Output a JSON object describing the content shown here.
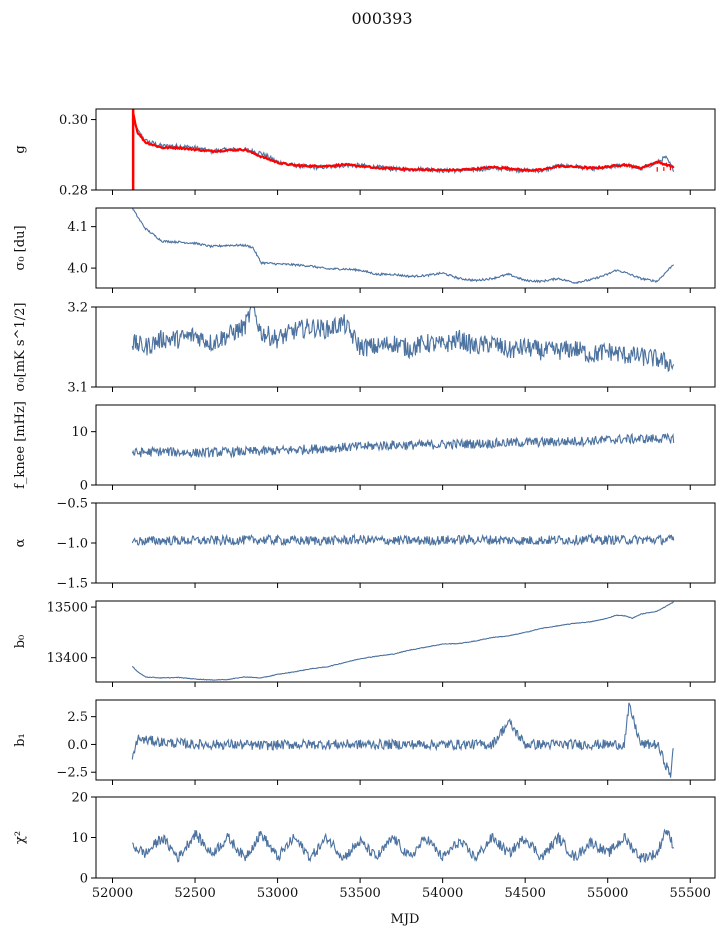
{
  "figure": {
    "title": "000393",
    "xlabel": "MJD",
    "series_color": "#4c72a0",
    "overlay_color": "#ff0000"
  },
  "chart_data": [
    {
      "type": "line",
      "name": "g",
      "ylabel": "g",
      "xlim": [
        51900,
        55650
      ],
      "ylim": [
        0.28,
        0.303
      ],
      "yticks": [
        0.28,
        0.3
      ],
      "ytick_labels": [
        "0.28",
        "0.30"
      ],
      "x": [
        52120,
        52150,
        52200,
        52300,
        52400,
        52500,
        52600,
        52700,
        52800,
        52900,
        53000,
        53100,
        53200,
        53300,
        53400,
        53500,
        53600,
        53700,
        53800,
        53900,
        54000,
        54100,
        54200,
        54300,
        54400,
        54500,
        54600,
        54700,
        54800,
        54900,
        55000,
        55100,
        55200,
        55300,
        55350,
        55400
      ],
      "y": [
        0.3,
        0.297,
        0.294,
        0.2925,
        0.2925,
        0.292,
        0.291,
        0.2915,
        0.2915,
        0.2905,
        0.288,
        0.287,
        0.2865,
        0.2865,
        0.287,
        0.287,
        0.2865,
        0.286,
        0.2858,
        0.286,
        0.2855,
        0.2855,
        0.2858,
        0.2862,
        0.286,
        0.2855,
        0.2855,
        0.2868,
        0.2868,
        0.286,
        0.2863,
        0.2873,
        0.286,
        0.2878,
        0.2893,
        0.2858
      ],
      "overlay": {
        "name": "fit",
        "x": [
          52125,
          52150,
          52200,
          52300,
          52400,
          52500,
          52600,
          52700,
          52800,
          52900,
          53000,
          53100,
          53200,
          53300,
          53400,
          53500,
          53600,
          53700,
          53800,
          53900,
          54000,
          54100,
          54200,
          54300,
          54400,
          54500,
          54600,
          54700,
          54800,
          54900,
          55000,
          55100,
          55200,
          55300,
          55400
        ],
        "y": [
          0.302,
          0.2965,
          0.2935,
          0.292,
          0.292,
          0.2915,
          0.291,
          0.2913,
          0.2915,
          0.2895,
          0.2878,
          0.287,
          0.2868,
          0.2868,
          0.2872,
          0.2868,
          0.2862,
          0.2862,
          0.2858,
          0.2858,
          0.2856,
          0.2857,
          0.286,
          0.2865,
          0.2862,
          0.2856,
          0.2857,
          0.2868,
          0.2866,
          0.2862,
          0.2866,
          0.2872,
          0.2862,
          0.288,
          0.2865
        ]
      }
    },
    {
      "type": "line",
      "name": "sigma0_du",
      "ylabel": "σ₀ [du]",
      "xlim": [
        51900,
        55650
      ],
      "ylim": [
        3.952,
        4.145
      ],
      "yticks": [
        4.0,
        4.1
      ],
      "ytick_labels": [
        "4.0",
        "4.1"
      ],
      "x": [
        52120,
        52150,
        52200,
        52300,
        52400,
        52500,
        52600,
        52700,
        52800,
        52850,
        52900,
        53000,
        53100,
        53200,
        53300,
        53400,
        53500,
        53600,
        53700,
        53800,
        53900,
        54000,
        54100,
        54200,
        54300,
        54400,
        54500,
        54600,
        54700,
        54800,
        54900,
        55000,
        55050,
        55100,
        55200,
        55300,
        55400
      ],
      "y": [
        4.145,
        4.125,
        4.095,
        4.065,
        4.063,
        4.06,
        4.052,
        4.055,
        4.055,
        4.05,
        4.013,
        4.01,
        4.008,
        4.005,
        3.998,
        3.998,
        3.995,
        3.985,
        3.985,
        3.98,
        3.982,
        3.988,
        3.975,
        3.97,
        3.975,
        3.985,
        3.97,
        3.968,
        3.975,
        3.965,
        3.972,
        3.985,
        3.995,
        3.99,
        3.975,
        3.968,
        4.01
      ]
    },
    {
      "type": "line",
      "name": "sigma0_mK",
      "ylabel": "σ₀[mK s^1/2]",
      "xlim": [
        51900,
        55650
      ],
      "ylim": [
        3.1,
        3.2
      ],
      "yticks": [
        3.1,
        3.2
      ],
      "ytick_labels": [
        "3.1",
        "3.2"
      ],
      "x": [
        52120,
        52200,
        52300,
        52400,
        52500,
        52600,
        52700,
        52800,
        52850,
        52900,
        53000,
        53100,
        53200,
        53300,
        53400,
        53500,
        53600,
        53700,
        53800,
        53900,
        54000,
        54100,
        54200,
        54300,
        54400,
        54500,
        54600,
        54700,
        54800,
        54900,
        55000,
        55100,
        55200,
        55300,
        55400
      ],
      "y": [
        3.155,
        3.15,
        3.16,
        3.16,
        3.165,
        3.155,
        3.165,
        3.175,
        3.2,
        3.168,
        3.16,
        3.17,
        3.175,
        3.172,
        3.18,
        3.15,
        3.15,
        3.155,
        3.148,
        3.155,
        3.152,
        3.16,
        3.15,
        3.155,
        3.145,
        3.15,
        3.145,
        3.145,
        3.148,
        3.14,
        3.145,
        3.14,
        3.138,
        3.135,
        3.128
      ]
    },
    {
      "type": "line",
      "name": "fknee",
      "ylabel": "f_knee [mHz]",
      "xlim": [
        51900,
        55650
      ],
      "ylim": [
        0,
        15
      ],
      "yticks": [
        0,
        10
      ],
      "ytick_labels": [
        "0",
        "10"
      ],
      "x": [
        52120,
        52300,
        52500,
        52700,
        52900,
        53100,
        53300,
        53500,
        53700,
        53900,
        54100,
        54300,
        54500,
        54700,
        54900,
        55100,
        55300,
        55400
      ],
      "y": [
        6.0,
        6.3,
        6.0,
        6.2,
        6.3,
        6.6,
        6.9,
        7.2,
        7.5,
        7.5,
        7.7,
        7.8,
        8.0,
        8.1,
        8.3,
        8.6,
        8.7,
        8.7
      ]
    },
    {
      "type": "line",
      "name": "alpha",
      "ylabel": "α",
      "xlim": [
        51900,
        55650
      ],
      "ylim": [
        -1.5,
        -0.5
      ],
      "yticks": [
        -1.5,
        -1.0,
        -0.5
      ],
      "ytick_labels": [
        "−1.5",
        "−1.0",
        "−0.5"
      ],
      "x": [
        52120,
        52300,
        52500,
        52700,
        52900,
        53100,
        53300,
        53500,
        53700,
        53900,
        54100,
        54300,
        54500,
        54700,
        54900,
        55100,
        55300,
        55400
      ],
      "y": [
        -0.98,
        -0.97,
        -0.97,
        -0.97,
        -0.96,
        -0.97,
        -0.97,
        -0.96,
        -0.97,
        -0.97,
        -0.96,
        -0.96,
        -0.97,
        -0.96,
        -0.96,
        -0.96,
        -0.96,
        -0.96
      ]
    },
    {
      "type": "line",
      "name": "b0",
      "ylabel": "b₀",
      "xlim": [
        51900,
        55650
      ],
      "ylim": [
        13352,
        13512
      ],
      "yticks": [
        13400,
        13500
      ],
      "ytick_labels": [
        "13400",
        "13500"
      ],
      "x": [
        52120,
        52150,
        52200,
        52300,
        52400,
        52500,
        52600,
        52700,
        52800,
        52900,
        53000,
        53100,
        53200,
        53300,
        53400,
        53500,
        53600,
        53700,
        53800,
        53900,
        54000,
        54100,
        54200,
        54300,
        54400,
        54500,
        54600,
        54700,
        54800,
        54900,
        55000,
        55050,
        55100,
        55150,
        55200,
        55300,
        55400
      ],
      "y": [
        13383,
        13373,
        13362,
        13360,
        13361,
        13358,
        13356,
        13357,
        13362,
        13360,
        13367,
        13372,
        13378,
        13382,
        13390,
        13398,
        13403,
        13407,
        13415,
        13421,
        13427,
        13428,
        13433,
        13440,
        13443,
        13450,
        13458,
        13463,
        13468,
        13471,
        13478,
        13484,
        13483,
        13478,
        13486,
        13492,
        13510
      ]
    },
    {
      "type": "line",
      "name": "b1",
      "ylabel": "b₁",
      "xlim": [
        51900,
        55650
      ],
      "ylim": [
        -3.2,
        4.0
      ],
      "yticks": [
        -2.5,
        0.0,
        2.5
      ],
      "ytick_labels": [
        "−2.5",
        "0.0",
        "2.5"
      ],
      "x": [
        52120,
        52150,
        52300,
        52500,
        52700,
        52900,
        53100,
        53300,
        53500,
        53700,
        53900,
        54100,
        54300,
        54400,
        54500,
        54700,
        54900,
        55100,
        55130,
        55200,
        55300,
        55380,
        55400
      ],
      "y": [
        -1.5,
        0.5,
        0.2,
        0.0,
        0.0,
        -0.1,
        0.0,
        0.0,
        0.0,
        0.0,
        0.0,
        0.0,
        0.0,
        2.0,
        0.0,
        0.0,
        0.0,
        0.0,
        3.5,
        0.0,
        0.0,
        -2.8,
        -0.2
      ]
    },
    {
      "type": "line",
      "name": "chi2",
      "ylabel": "χ²",
      "xlim": [
        51900,
        55650
      ],
      "ylim": [
        0,
        20
      ],
      "yticks": [
        0,
        10,
        20
      ],
      "ytick_labels": [
        "0",
        "10",
        "20"
      ],
      "x": [
        52120,
        52200,
        52300,
        52400,
        52500,
        52600,
        52700,
        52800,
        52900,
        53000,
        53100,
        53200,
        53300,
        53400,
        53500,
        53600,
        53700,
        53800,
        53900,
        54000,
        54100,
        54200,
        54300,
        54400,
        54500,
        54600,
        54700,
        54800,
        54900,
        55000,
        55100,
        55200,
        55300,
        55350,
        55400
      ],
      "y": [
        8,
        6,
        10,
        5,
        11,
        6,
        10,
        5,
        11,
        5,
        10,
        5,
        10,
        5,
        9,
        5,
        10,
        5,
        10,
        5,
        9,
        5,
        10,
        6,
        10,
        5,
        10,
        5,
        9,
        6,
        10,
        5,
        6,
        12,
        8
      ]
    }
  ],
  "shared_xaxis": {
    "xlim": [
      51900,
      55650
    ],
    "xticks": [
      52000,
      52500,
      53000,
      53500,
      54000,
      54500,
      55000,
      55500
    ],
    "xtick_labels": [
      "52000",
      "52500",
      "53000",
      "53500",
      "54000",
      "54500",
      "55000",
      "55500"
    ]
  }
}
